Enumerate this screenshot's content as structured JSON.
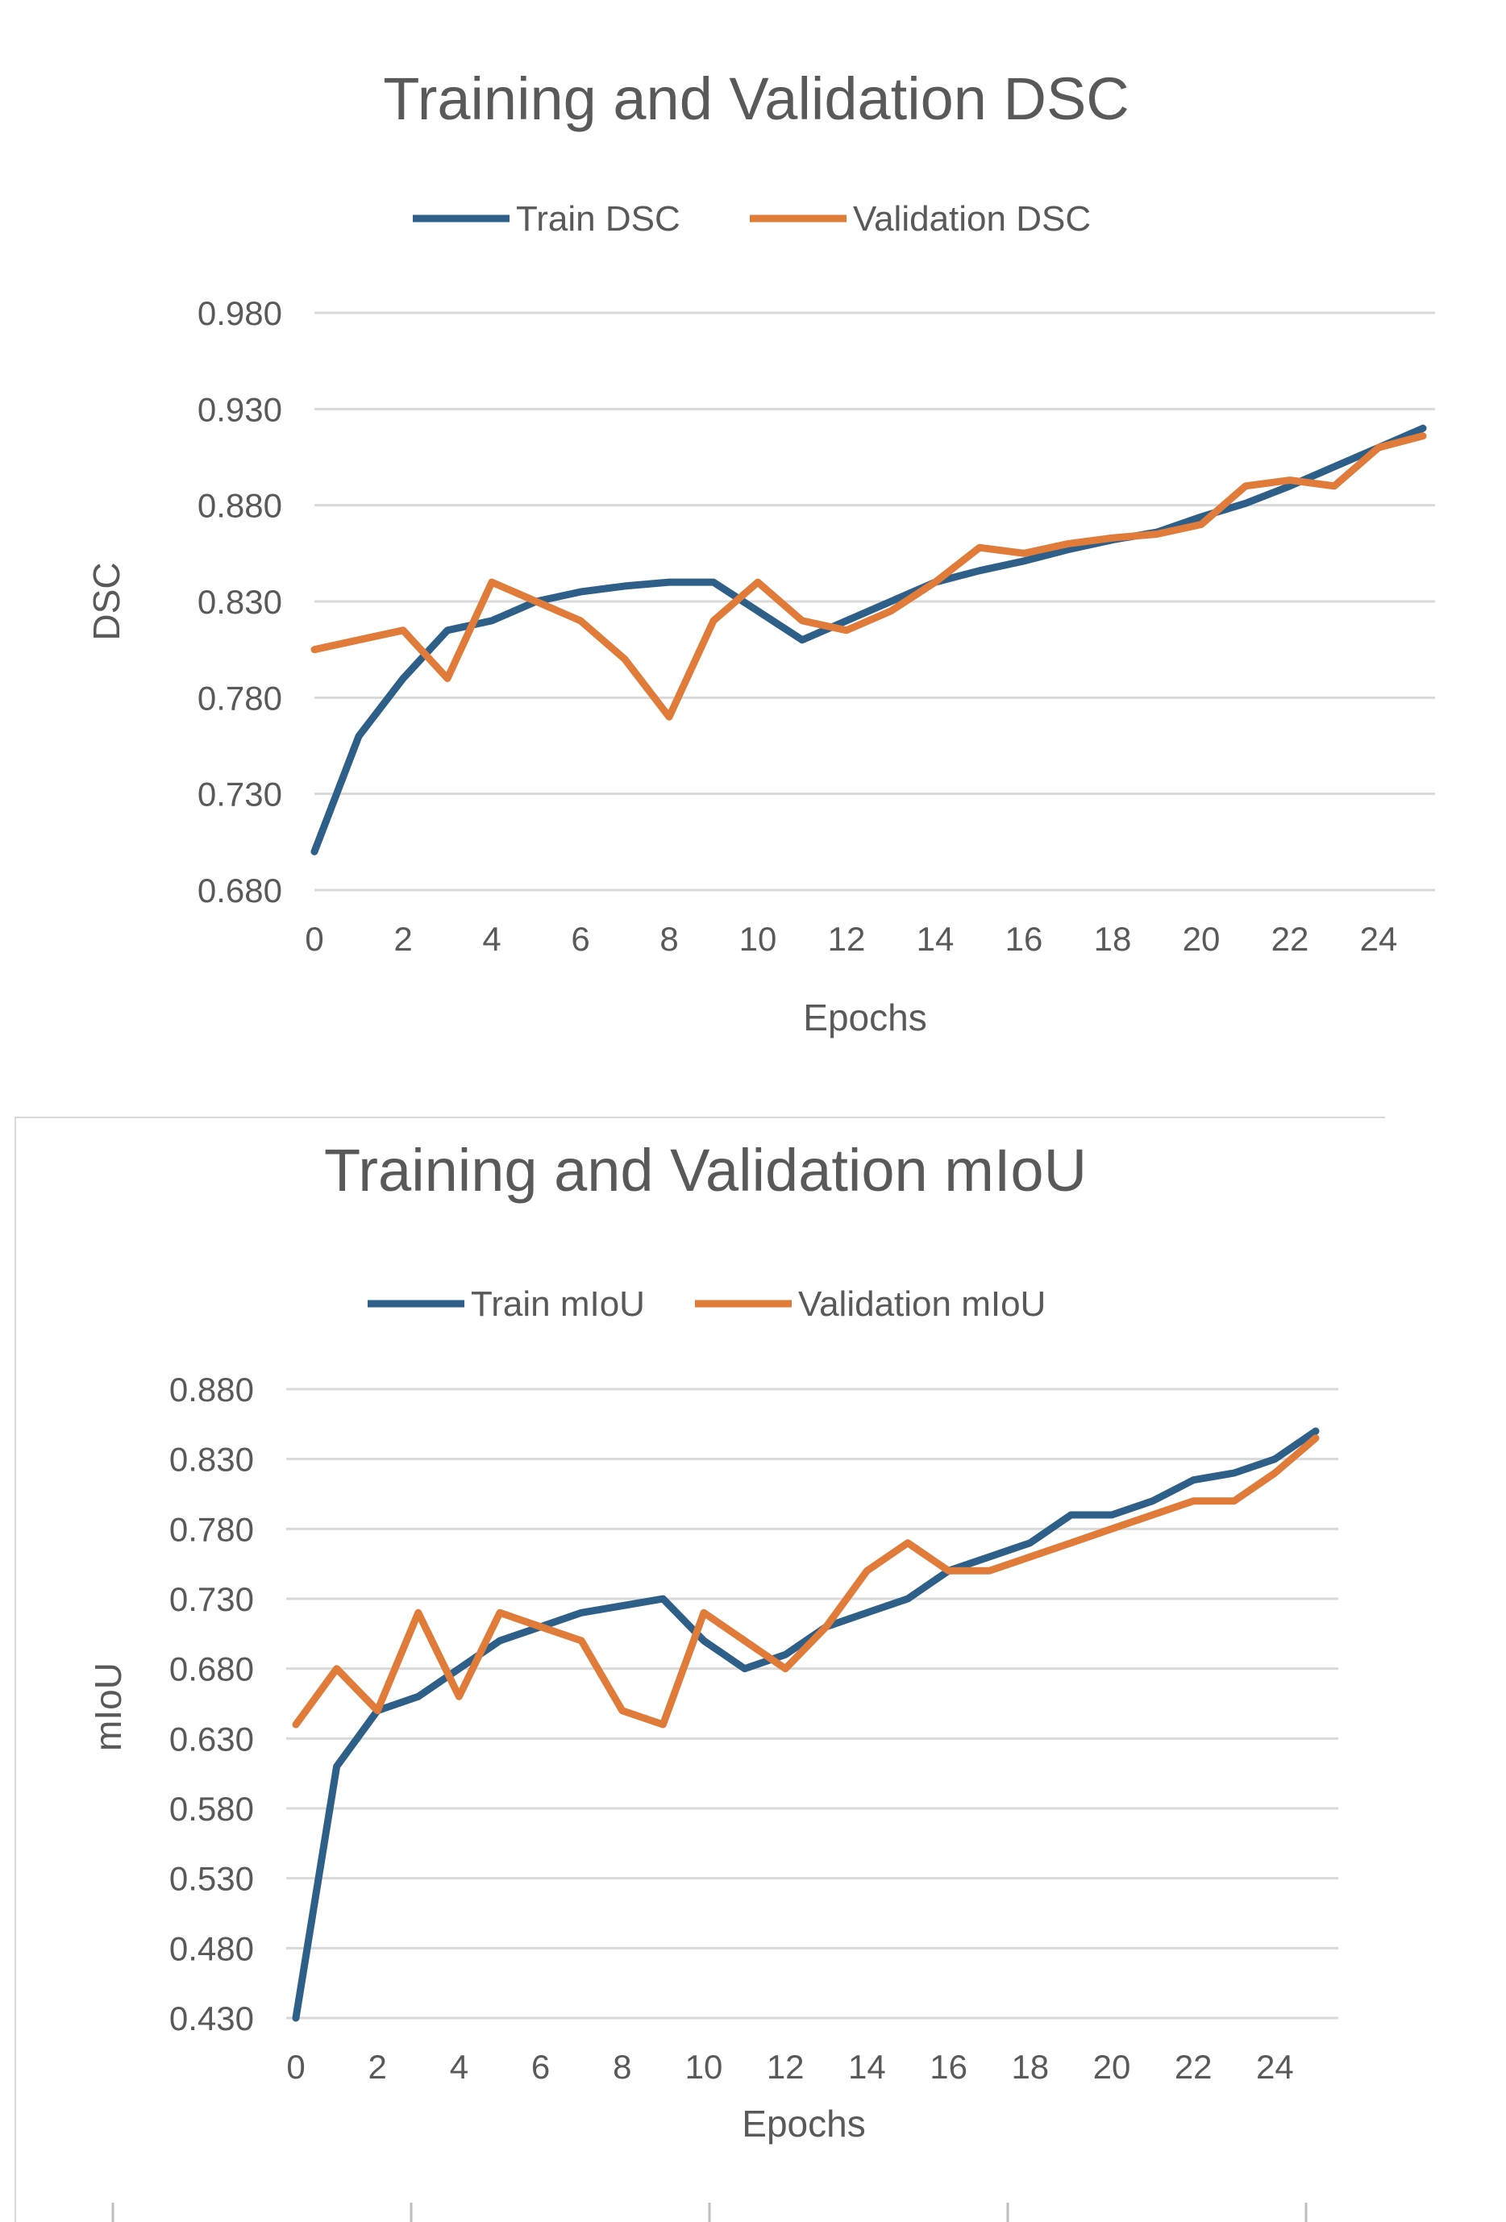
{
  "colors": {
    "train": "#2e5f88",
    "validation": "#e07b39",
    "text": "#595959",
    "grid": "#d9d9d9"
  },
  "chart_data": [
    {
      "type": "line",
      "title": "Training and Validation DSC",
      "xlabel": "Epochs",
      "ylabel": "DSC",
      "x": [
        0,
        1,
        2,
        3,
        4,
        5,
        6,
        7,
        8,
        9,
        10,
        11,
        12,
        13,
        14,
        15,
        16,
        17,
        18,
        19,
        20,
        21,
        22,
        23,
        24,
        25
      ],
      "xticks": [
        "0",
        "2",
        "4",
        "6",
        "8",
        "10",
        "12",
        "14",
        "16",
        "18",
        "20",
        "22",
        "24"
      ],
      "yticks": [
        "0.680",
        "0.730",
        "0.780",
        "0.830",
        "0.880",
        "0.930",
        "0.980"
      ],
      "ylim": [
        0.68,
        0.98
      ],
      "series": [
        {
          "name": "Train DSC",
          "values": [
            0.7,
            0.76,
            0.79,
            0.815,
            0.82,
            0.83,
            0.835,
            0.838,
            0.84,
            0.84,
            0.825,
            0.81,
            0.82,
            0.83,
            0.84,
            0.846,
            0.851,
            0.857,
            0.862,
            0.866,
            0.874,
            0.881,
            0.89,
            0.9,
            0.91,
            0.92
          ]
        },
        {
          "name": "Validation DSC",
          "values": [
            0.805,
            0.81,
            0.815,
            0.79,
            0.84,
            0.83,
            0.82,
            0.8,
            0.77,
            0.82,
            0.84,
            0.82,
            0.815,
            0.825,
            0.84,
            0.858,
            0.855,
            0.86,
            0.863,
            0.865,
            0.87,
            0.89,
            0.893,
            0.89,
            0.91,
            0.916
          ]
        }
      ]
    },
    {
      "type": "line",
      "title": "Training and Validation mIoU",
      "xlabel": "Epochs",
      "ylabel": "mIoU",
      "x": [
        0,
        1,
        2,
        3,
        4,
        5,
        6,
        7,
        8,
        9,
        10,
        11,
        12,
        13,
        14,
        15,
        16,
        17,
        18,
        19,
        20,
        21,
        22,
        23,
        24,
        25
      ],
      "xticks": [
        "0",
        "2",
        "4",
        "6",
        "8",
        "10",
        "12",
        "14",
        "16",
        "18",
        "20",
        "22",
        "24"
      ],
      "yticks": [
        "0.430",
        "0.480",
        "0.530",
        "0.580",
        "0.630",
        "0.680",
        "0.730",
        "0.780",
        "0.830",
        "0.880"
      ],
      "ylim": [
        0.43,
        0.88
      ],
      "series": [
        {
          "name": "Train mIoU",
          "values": [
            0.43,
            0.61,
            0.65,
            0.66,
            0.68,
            0.7,
            0.71,
            0.72,
            0.725,
            0.73,
            0.7,
            0.68,
            0.69,
            0.71,
            0.72,
            0.73,
            0.75,
            0.76,
            0.77,
            0.79,
            0.79,
            0.8,
            0.815,
            0.82,
            0.83,
            0.85
          ]
        },
        {
          "name": "Validation mIoU",
          "values": [
            0.64,
            0.68,
            0.65,
            0.72,
            0.66,
            0.72,
            0.71,
            0.7,
            0.65,
            0.64,
            0.72,
            0.7,
            0.68,
            0.71,
            0.75,
            0.77,
            0.75,
            0.75,
            0.76,
            0.77,
            0.78,
            0.79,
            0.8,
            0.8,
            0.82,
            0.845
          ]
        }
      ]
    }
  ]
}
